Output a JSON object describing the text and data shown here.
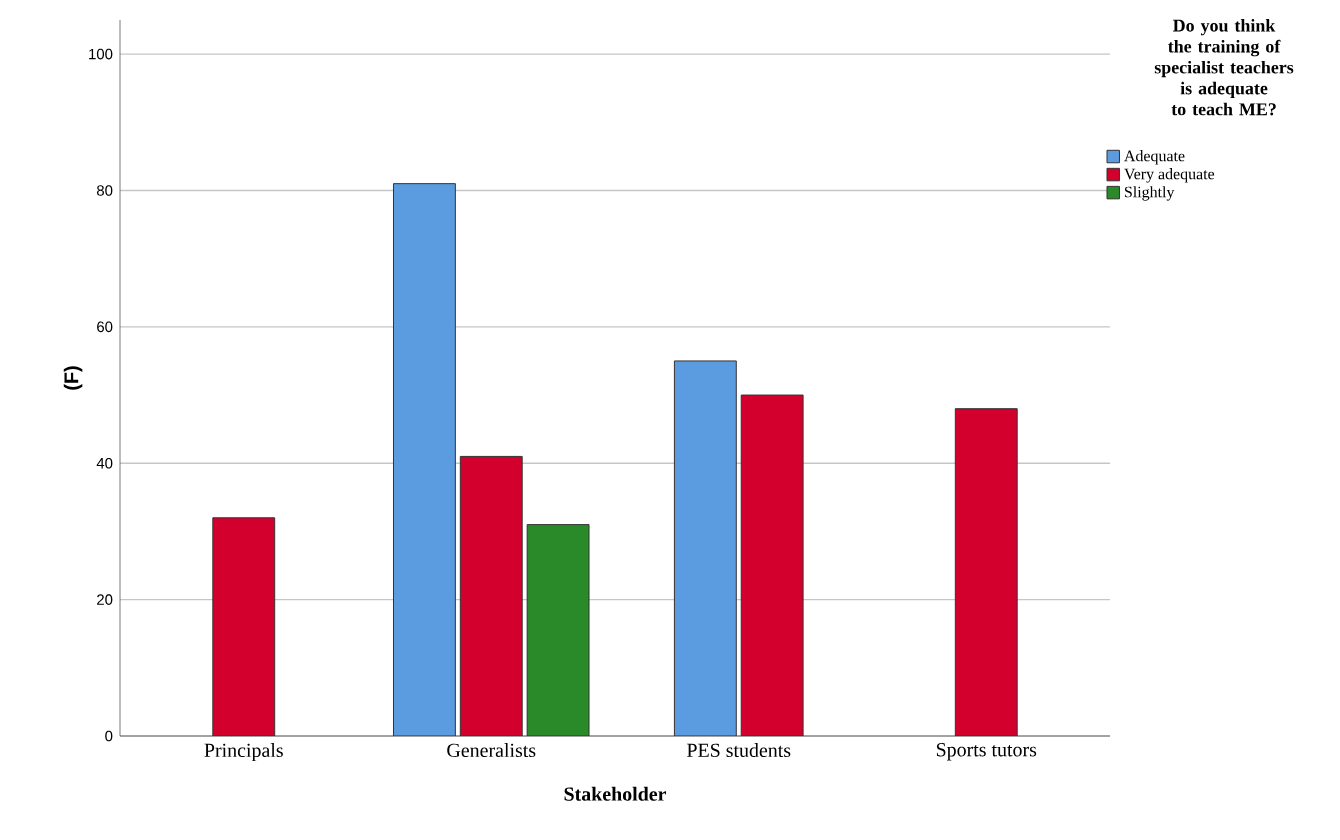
{
  "chart_data": {
    "type": "bar",
    "xlabel": "Stakeholder",
    "ylabel": "(F)",
    "legend_title": "Do you think the training of specialist teachers is adequate to teach ME?",
    "categories": [
      "Principals",
      "Generalists",
      "PES students",
      "Sports tutors"
    ],
    "series": [
      {
        "name": "Adequate",
        "color": "#5b9be0",
        "values": [
          null,
          81,
          55,
          null
        ]
      },
      {
        "name": "Very adequate",
        "color": "#d3002e",
        "values": [
          32,
          41,
          50,
          48
        ]
      },
      {
        "name": "Slightly",
        "color": "#2a8a2a",
        "values": [
          null,
          31,
          null,
          null
        ]
      }
    ],
    "ylim": [
      0,
      105
    ],
    "yticks": [
      0,
      20,
      40,
      60,
      80,
      100
    ],
    "grid": "y",
    "legend": "right"
  }
}
